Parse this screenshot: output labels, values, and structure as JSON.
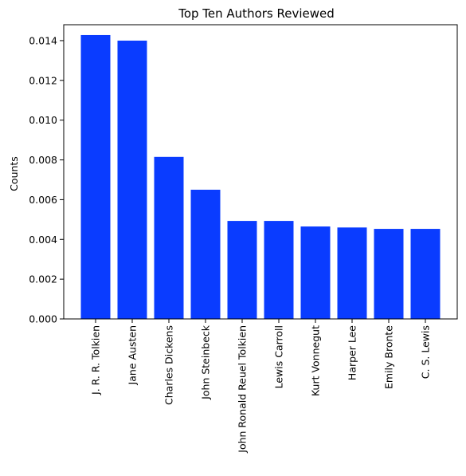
{
  "chart_data": {
    "type": "bar",
    "title": "Top Ten Authors Reviewed",
    "xlabel": "",
    "ylabel": "Counts",
    "categories": [
      "J. R. R. Tolkien",
      "Jane Austen",
      "Charles Dickens",
      "John Steinbeck",
      "John Ronald Reuel Tolkien",
      "Lewis Carroll",
      "Kurt Vonnegut",
      "Harper Lee",
      "Emily Bronte",
      "C. S. Lewis"
    ],
    "values": [
      0.01428,
      0.014,
      0.00815,
      0.0065,
      0.00493,
      0.00493,
      0.00465,
      0.0046,
      0.00453,
      0.00453
    ],
    "ylim": [
      0,
      0.0148
    ],
    "yticks": [
      "0.000",
      "0.002",
      "0.004",
      "0.006",
      "0.008",
      "0.010",
      "0.012",
      "0.014"
    ],
    "bar_color": "#0a3cff",
    "grid": false,
    "x_tick_rotation": "vertical"
  }
}
